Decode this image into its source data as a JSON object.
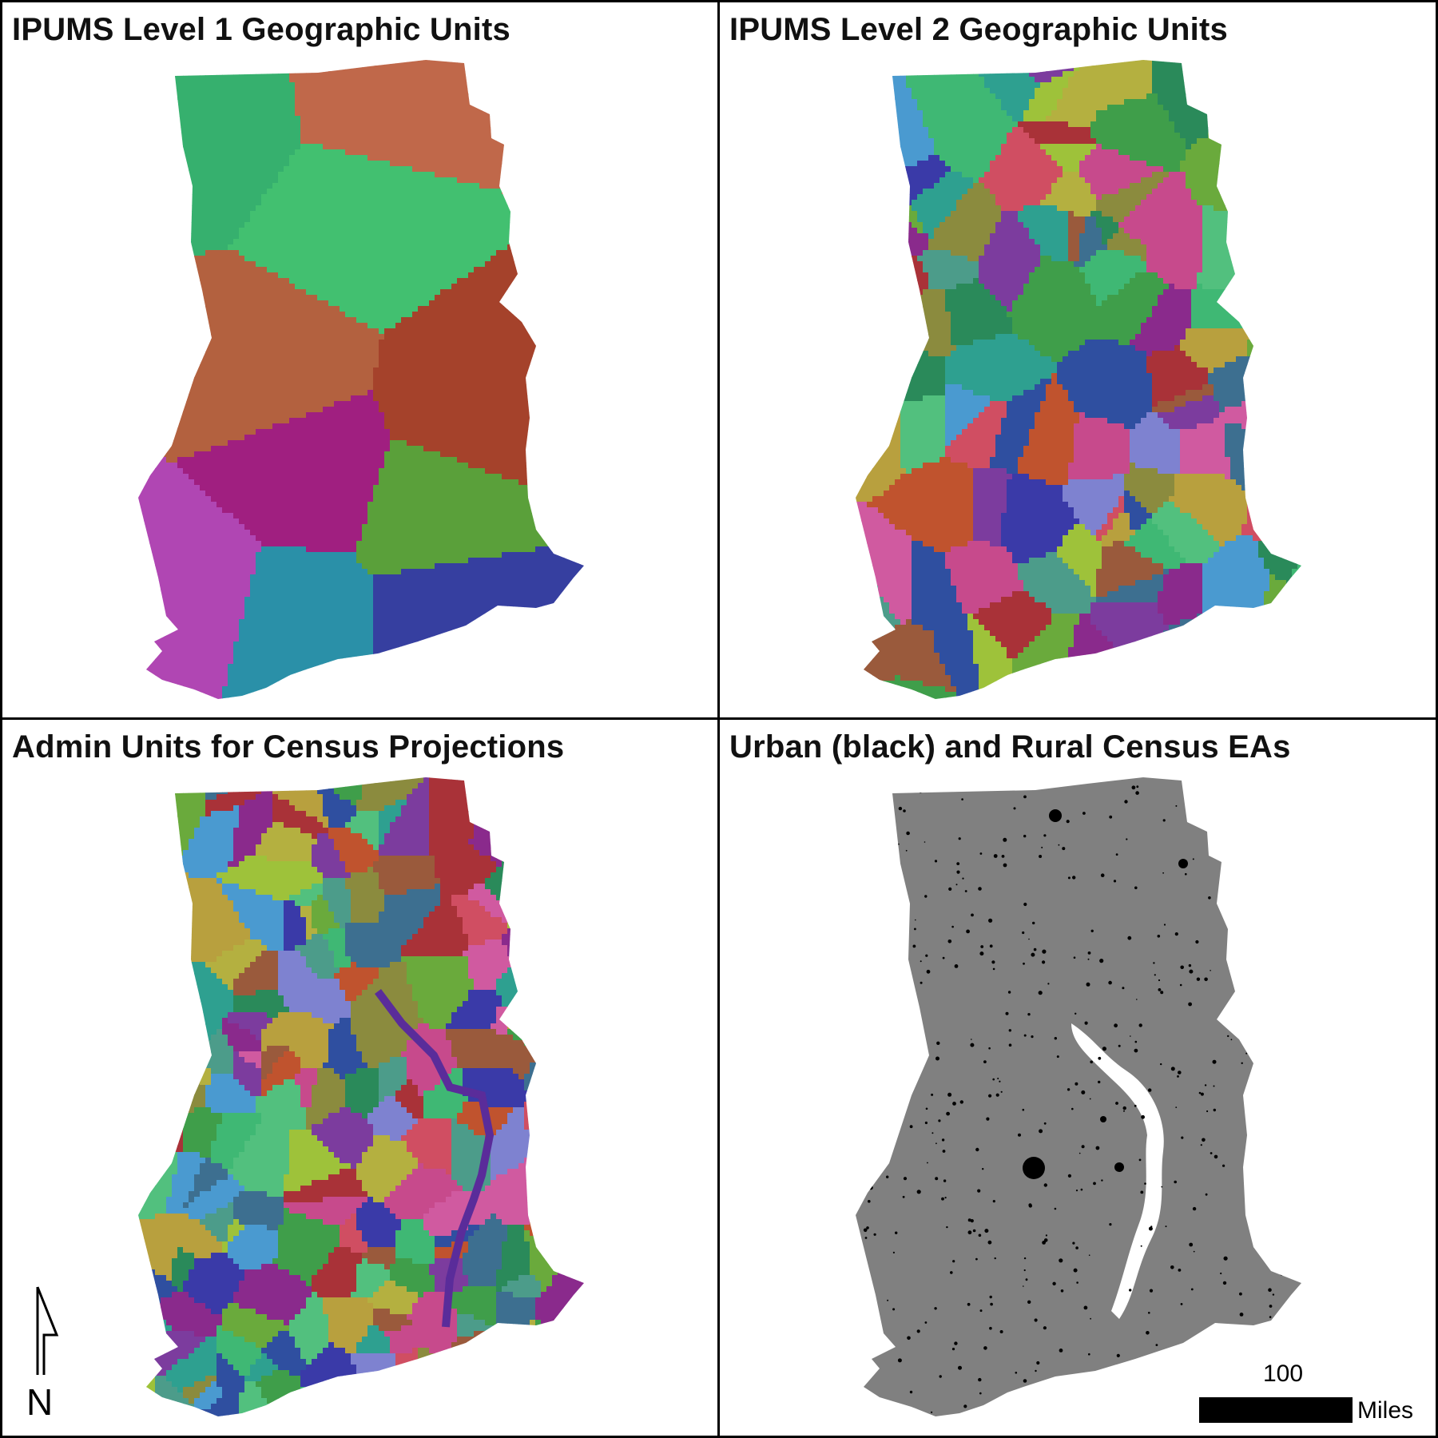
{
  "panels": [
    {
      "title": "IPUMS Level 1 Geographic Units"
    },
    {
      "title": "IPUMS Level 2 Geographic Units"
    },
    {
      "title": "Admin Units for Census Projections"
    },
    {
      "title": "Urban (black) and Rural Census EAs"
    }
  ],
  "scale_bar": {
    "value": "100",
    "unit": "Miles"
  },
  "north_arrow": {
    "label": "N"
  },
  "colors": {
    "rural_gray": "#808080",
    "urban_black": "#000000",
    "lake_white": "#ffffff",
    "level1": [
      "#36b06e",
      "#c0684a",
      "#42c070",
      "#b3613f",
      "#a5422b",
      "#a01f80",
      "#5aa03a",
      "#b046b3",
      "#2a90a8",
      "#363fa0"
    ],
    "palette": [
      "#3fb874",
      "#8b8b3e",
      "#2ea090",
      "#a93238",
      "#4c9c8a",
      "#3d6f90",
      "#7c3c9e",
      "#3f9e4a",
      "#9a5a3c",
      "#b8a03e",
      "#c74a8c",
      "#2a8a5a",
      "#6aaa3c",
      "#2f4fa0",
      "#b4b040",
      "#c0532e",
      "#4a9ad0",
      "#8a2a8c",
      "#d04e62",
      "#52c07e",
      "#7e82d0",
      "#3a3aa8",
      "#9ec23a",
      "#d05aa0"
    ]
  }
}
